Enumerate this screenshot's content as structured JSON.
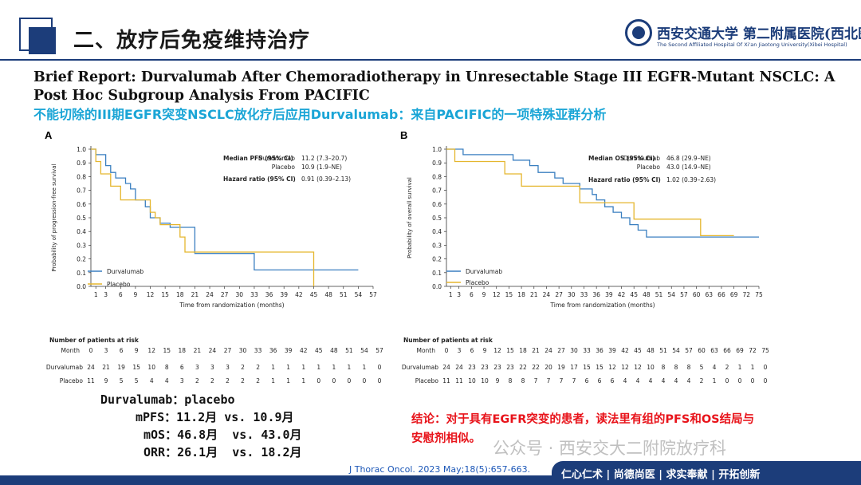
{
  "header": {
    "title": "二、放疗后免疫维持治疗",
    "logo_name": "西安交通大学 第二附属医院(西北医院)",
    "logo_subtitle": "The Second Affiliated Hospital Of Xi'an Jiaotong University(Xibei Hospital)"
  },
  "paper_title": "Brief Report: Durvalumab After Chemoradiotherapy in Unresectable Stage III EGFR-Mutant NSCLC: A Post Hoc Subgroup Analysis From PACIFIC",
  "subtitle_cn": "不能切除的III期EGFR突变NSCLC放化疗后应用Durvalumab：来自PACIFIC的一项特殊亚群分析",
  "colors": {
    "durvalumab": "#3a7fc0",
    "placebo": "#e5b62e",
    "brand": "#1c3d7a",
    "conclusion": "#e8141b",
    "subtitle": "#1aa5d6"
  },
  "chart_data": [
    {
      "type": "line",
      "panel_label": "A",
      "ylabel": "Probability of progression-free survival",
      "xlabel": "Time from randomization (months)",
      "xlim": [
        0,
        57
      ],
      "ylim": [
        0,
        1.0
      ],
      "x_ticks": [
        1,
        3,
        6,
        9,
        12,
        15,
        18,
        21,
        24,
        27,
        30,
        33,
        36,
        39,
        42,
        45,
        48,
        51,
        54,
        57
      ],
      "y_ticks": [
        0.0,
        0.1,
        0.2,
        0.3,
        0.4,
        0.5,
        0.6,
        0.7,
        0.8,
        0.9,
        1.0
      ],
      "legend": [
        "Durvalumab",
        "Placebo"
      ],
      "legend_position": "bottom-left",
      "annotation": {
        "median_label": "Median PFS (95% CI)",
        "median_rows": [
          {
            "arm": "Durvalumab",
            "value": "11.2 (7.3–20.7)"
          },
          {
            "arm": "Placebo",
            "value": "10.9 (1.9–NE)"
          }
        ],
        "hr_label": "Hazard ratio (95% CI)",
        "hr_value": "0.91 (0.39–2.13)"
      },
      "series": [
        {
          "name": "Durvalumab",
          "x": [
            0,
            1,
            3,
            4,
            5,
            7,
            8,
            9,
            11,
            12,
            14,
            16,
            18,
            21,
            27,
            33,
            54
          ],
          "y": [
            1.0,
            0.96,
            0.88,
            0.83,
            0.79,
            0.75,
            0.71,
            0.63,
            0.58,
            0.5,
            0.46,
            0.43,
            0.43,
            0.24,
            0.24,
            0.12,
            0.12
          ]
        },
        {
          "name": "Placebo",
          "x": [
            0,
            1,
            2,
            3,
            4,
            5,
            6,
            9,
            12,
            13,
            14,
            18,
            19,
            45,
            45
          ],
          "y": [
            1.0,
            0.91,
            0.82,
            0.82,
            0.73,
            0.73,
            0.63,
            0.63,
            0.54,
            0.5,
            0.45,
            0.36,
            0.25,
            0.25,
            0.0
          ]
        }
      ],
      "risk_table": {
        "title": "Number of patients at risk",
        "header_label": "Month",
        "months": [
          "0",
          "3",
          "6",
          "9",
          "12",
          "15",
          "18",
          "21",
          "24",
          "27",
          "30",
          "33",
          "36",
          "39",
          "42",
          "45",
          "48",
          "51",
          "54",
          "57"
        ],
        "rows": [
          {
            "label": "Durvalumab",
            "values": [
              "24",
              "21",
              "19",
              "15",
              "10",
              "8",
              "6",
              "3",
              "3",
              "3",
              "2",
              "2",
              "1",
              "1",
              "1",
              "1",
              "1",
              "1",
              "1",
              "0"
            ]
          },
          {
            "label": "Placebo",
            "values": [
              "11",
              "9",
              "5",
              "5",
              "4",
              "4",
              "3",
              "2",
              "2",
              "2",
              "2",
              "2",
              "1",
              "1",
              "1",
              "0",
              "0",
              "0",
              "0",
              "0"
            ]
          }
        ]
      }
    },
    {
      "type": "line",
      "panel_label": "B",
      "ylabel": "Probability of overall survival",
      "xlabel": "Time from randomization (months)",
      "xlim": [
        0,
        75
      ],
      "ylim": [
        0,
        1.0
      ],
      "x_ticks": [
        1,
        3,
        6,
        9,
        12,
        15,
        18,
        21,
        24,
        27,
        30,
        33,
        36,
        39,
        42,
        45,
        48,
        51,
        54,
        57,
        60,
        63,
        66,
        69,
        72,
        75
      ],
      "y_ticks": [
        0.0,
        0.1,
        0.2,
        0.3,
        0.4,
        0.5,
        0.6,
        0.7,
        0.8,
        0.9,
        1.0
      ],
      "legend": [
        "Durvalumab",
        "Placebo"
      ],
      "legend_position": "bottom-left",
      "annotation": {
        "median_label": "Median OS (95% CI)",
        "median_rows": [
          {
            "arm": "Durvalumab",
            "value": "46.8 (29.9–NE)"
          },
          {
            "arm": "Placebo",
            "value": "43.0 (14.9–NE)"
          }
        ],
        "hr_label": "Hazard ratio (95% CI)",
        "hr_value": "1.02 (0.39–2.63)"
      },
      "series": [
        {
          "name": "Durvalumab",
          "x": [
            0,
            3,
            4,
            15,
            16,
            20,
            22,
            26,
            28,
            32,
            34,
            35,
            36,
            38,
            40,
            42,
            44,
            46,
            48,
            75
          ],
          "y": [
            1.0,
            1.0,
            0.96,
            0.96,
            0.92,
            0.88,
            0.83,
            0.79,
            0.75,
            0.71,
            0.71,
            0.67,
            0.63,
            0.58,
            0.54,
            0.5,
            0.45,
            0.41,
            0.36,
            0.36
          ]
        },
        {
          "name": "Placebo",
          "x": [
            0,
            2,
            12,
            14,
            18,
            30,
            32,
            42,
            45,
            60,
            61,
            69
          ],
          "y": [
            1.0,
            0.91,
            0.91,
            0.82,
            0.73,
            0.73,
            0.61,
            0.61,
            0.49,
            0.49,
            0.37,
            0.37
          ]
        }
      ],
      "risk_table": {
        "title": "Number of patients at risk",
        "header_label": "Month",
        "months": [
          "0",
          "3",
          "6",
          "9",
          "12",
          "15",
          "18",
          "21",
          "24",
          "27",
          "30",
          "33",
          "36",
          "39",
          "42",
          "45",
          "48",
          "51",
          "54",
          "57",
          "60",
          "63",
          "66",
          "69",
          "72",
          "75"
        ],
        "rows": [
          {
            "label": "Durvalumab",
            "values": [
              "24",
              "24",
              "23",
              "23",
              "23",
              "23",
              "22",
              "22",
              "20",
              "19",
              "17",
              "15",
              "15",
              "12",
              "12",
              "12",
              "10",
              "8",
              "8",
              "8",
              "5",
              "4",
              "2",
              "1",
              "1",
              "0"
            ]
          },
          {
            "label": "Placebo",
            "values": [
              "11",
              "11",
              "10",
              "10",
              "9",
              "8",
              "8",
              "7",
              "7",
              "7",
              "7",
              "6",
              "6",
              "6",
              "4",
              "4",
              "4",
              "4",
              "4",
              "4",
              "2",
              "1",
              "0",
              "0",
              "0",
              "0"
            ]
          }
        ]
      }
    }
  ],
  "summary": {
    "heading": "Durvalumab：placebo",
    "lines": [
      "mPFS：11.2月 vs. 10.9月",
      "mOS：46.8月  vs. 43.0月",
      "ORR：26.1月  vs. 18.2月"
    ]
  },
  "conclusion": "结论：对于具有EGFR突变的患者，读法里有组的PFS和OS结局与安慰剂相似。",
  "watermark": "公众号 · 西安交大二附院放疗科",
  "citation": "J Thorac Oncol. 2023 May;18(5):657-663.",
  "footer_motto": "仁心仁术 | 尚德尚医 | 求实奉献 | 开拓创新"
}
